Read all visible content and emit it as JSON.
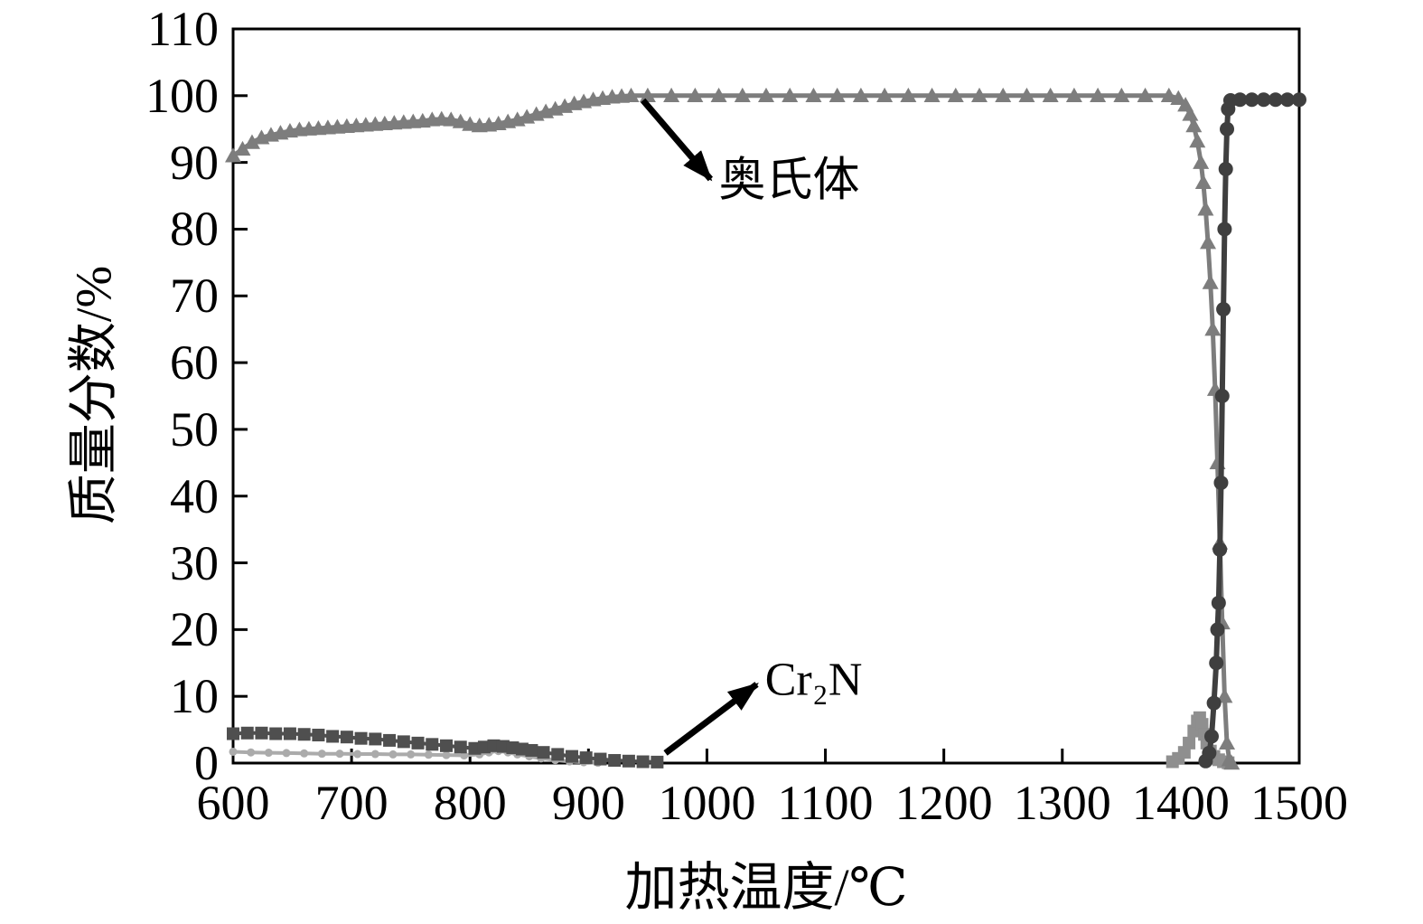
{
  "chart_data": {
    "type": "line",
    "title": "",
    "xlabel": "加热温度/℃",
    "ylabel": "质量分数/%",
    "xlim": [
      600,
      1500
    ],
    "ylim": [
      0,
      110
    ],
    "grid": false,
    "legend": "none",
    "x_ticks": [
      600,
      700,
      800,
      900,
      1000,
      1100,
      1200,
      1300,
      1400,
      1500
    ],
    "y_ticks": [
      0,
      10,
      20,
      30,
      40,
      50,
      60,
      70,
      80,
      90,
      100,
      110
    ],
    "annotations": [
      {
        "label": "奥氏体",
        "arrow": {
          "x1": 946,
          "y1": 99.3,
          "x2": 1003,
          "y2": 87.5
        },
        "text_at": {
          "x": 1010,
          "y": 88
        }
      },
      {
        "label": "Cr₂N",
        "arrow": {
          "x1": 965,
          "y1": 1.5,
          "x2": 1042,
          "y2": 11.8
        },
        "text_at": {
          "x": 1049,
          "y": 12.5
        }
      }
    ],
    "series": [
      {
        "name": "minor-phase",
        "label": "",
        "color": "#ababab",
        "marker": "dot",
        "marker_size": 4.5,
        "line_width": 4,
        "points": [
          [
            600,
            1.7
          ],
          [
            615,
            1.6
          ],
          [
            630,
            1.55
          ],
          [
            645,
            1.5
          ],
          [
            660,
            1.45
          ],
          [
            675,
            1.4
          ],
          [
            690,
            1.4
          ],
          [
            705,
            1.35
          ],
          [
            720,
            1.35
          ],
          [
            735,
            1.3
          ],
          [
            750,
            1.3
          ],
          [
            765,
            1.25
          ],
          [
            780,
            1.2
          ],
          [
            795,
            1.15
          ],
          [
            808,
            1.3
          ],
          [
            816,
            1.6
          ],
          [
            824,
            1.8
          ],
          [
            832,
            1.6
          ],
          [
            840,
            1.3
          ],
          [
            850,
            1.0
          ],
          [
            860,
            0.7
          ],
          [
            872,
            0.45
          ],
          [
            884,
            0.25
          ],
          [
            896,
            0.12
          ],
          [
            908,
            0.05
          ]
        ]
      },
      {
        "name": "cr2n",
        "label": "Cr₂N",
        "color": "#4f4f4f",
        "marker": "square",
        "marker_size": 7,
        "line_width": 4,
        "points": [
          [
            600,
            4.4
          ],
          [
            612,
            4.5
          ],
          [
            624,
            4.5
          ],
          [
            636,
            4.4
          ],
          [
            648,
            4.4
          ],
          [
            660,
            4.3
          ],
          [
            672,
            4.2
          ],
          [
            684,
            4.0
          ],
          [
            696,
            3.9
          ],
          [
            708,
            3.7
          ],
          [
            720,
            3.6
          ],
          [
            732,
            3.4
          ],
          [
            744,
            3.2
          ],
          [
            756,
            3.0
          ],
          [
            768,
            2.8
          ],
          [
            780,
            2.6
          ],
          [
            792,
            2.4
          ],
          [
            804,
            2.2
          ],
          [
            812,
            2.4
          ],
          [
            820,
            2.6
          ],
          [
            828,
            2.5
          ],
          [
            836,
            2.3
          ],
          [
            844,
            2.1
          ],
          [
            852,
            1.9
          ],
          [
            862,
            1.6
          ],
          [
            874,
            1.3
          ],
          [
            886,
            1.0
          ],
          [
            898,
            0.8
          ],
          [
            910,
            0.6
          ],
          [
            922,
            0.4
          ],
          [
            934,
            0.3
          ],
          [
            946,
            0.2
          ],
          [
            958,
            0.15
          ]
        ]
      },
      {
        "name": "high-temp-minor-phase",
        "label": "",
        "color": "#8f8f8f",
        "marker": "square",
        "marker_size": 7,
        "line_width": 3,
        "points": [
          [
            1393,
            0.2
          ],
          [
            1398,
            0.7
          ],
          [
            1403,
            1.6
          ],
          [
            1407,
            3.0
          ],
          [
            1411,
            4.8
          ],
          [
            1414,
            6.3
          ],
          [
            1416,
            6.8
          ],
          [
            1418,
            5.8
          ],
          [
            1420,
            4.3
          ],
          [
            1422,
            3.0
          ],
          [
            1425,
            1.8
          ],
          [
            1428,
            1.0
          ],
          [
            1432,
            0.5
          ],
          [
            1436,
            0.2
          ],
          [
            1440,
            0.05
          ]
        ]
      },
      {
        "name": "austenite",
        "label": "奥氏体",
        "color": "#7d7d7d",
        "marker": "triangle",
        "marker_size": 9,
        "line_width": 5,
        "points": [
          [
            600,
            91
          ],
          [
            608,
            92
          ],
          [
            616,
            93
          ],
          [
            624,
            93.7
          ],
          [
            632,
            94.1
          ],
          [
            640,
            94.4
          ],
          [
            648,
            94.7
          ],
          [
            656,
            94.9
          ],
          [
            664,
            95
          ],
          [
            672,
            95.1
          ],
          [
            680,
            95.2
          ],
          [
            688,
            95.3
          ],
          [
            696,
            95.4
          ],
          [
            704,
            95.5
          ],
          [
            712,
            95.6
          ],
          [
            720,
            95.7
          ],
          [
            728,
            95.8
          ],
          [
            736,
            95.9
          ],
          [
            744,
            96
          ],
          [
            752,
            96.1
          ],
          [
            760,
            96.2
          ],
          [
            768,
            96.4
          ],
          [
            776,
            96.5
          ],
          [
            784,
            96.4
          ],
          [
            792,
            96.1
          ],
          [
            800,
            95.7
          ],
          [
            808,
            95.5
          ],
          [
            816,
            95.6
          ],
          [
            824,
            95.8
          ],
          [
            832,
            96.1
          ],
          [
            840,
            96.4
          ],
          [
            848,
            96.8
          ],
          [
            856,
            97.2
          ],
          [
            864,
            97.6
          ],
          [
            872,
            98
          ],
          [
            880,
            98.4
          ],
          [
            888,
            98.8
          ],
          [
            896,
            99.1
          ],
          [
            904,
            99.4
          ],
          [
            912,
            99.6
          ],
          [
            920,
            99.8
          ],
          [
            928,
            99.9
          ],
          [
            936,
            100
          ],
          [
            950,
            100
          ],
          [
            970,
            100
          ],
          [
            990,
            100
          ],
          [
            1010,
            100
          ],
          [
            1030,
            100
          ],
          [
            1050,
            100
          ],
          [
            1070,
            100
          ],
          [
            1090,
            100
          ],
          [
            1110,
            100
          ],
          [
            1130,
            100
          ],
          [
            1150,
            100
          ],
          [
            1170,
            100
          ],
          [
            1190,
            100
          ],
          [
            1210,
            100
          ],
          [
            1230,
            100
          ],
          [
            1250,
            100
          ],
          [
            1270,
            100
          ],
          [
            1290,
            100
          ],
          [
            1310,
            100
          ],
          [
            1330,
            100
          ],
          [
            1350,
            100
          ],
          [
            1370,
            100
          ],
          [
            1390,
            100
          ],
          [
            1398,
            99.6
          ],
          [
            1404,
            98.6
          ],
          [
            1408,
            97.2
          ],
          [
            1411,
            95.5
          ],
          [
            1414,
            93.2
          ],
          [
            1417,
            90
          ],
          [
            1419,
            87
          ],
          [
            1421,
            83
          ],
          [
            1423,
            78
          ],
          [
            1425,
            72
          ],
          [
            1427,
            65
          ],
          [
            1429,
            56
          ],
          [
            1431,
            45
          ],
          [
            1433,
            33
          ],
          [
            1435,
            21
          ],
          [
            1437,
            10
          ],
          [
            1439,
            3
          ],
          [
            1441,
            0.5
          ],
          [
            1443,
            0
          ]
        ]
      },
      {
        "name": "liquid",
        "label": "",
        "color": "#3f3f3f",
        "marker": "circle",
        "marker_size": 8,
        "line_width": 6,
        "points": [
          [
            1421,
            0.3
          ],
          [
            1424,
            1.5
          ],
          [
            1426,
            4
          ],
          [
            1428,
            9
          ],
          [
            1430,
            15
          ],
          [
            1431,
            20
          ],
          [
            1432,
            24
          ],
          [
            1433,
            32
          ],
          [
            1434,
            42
          ],
          [
            1435,
            55
          ],
          [
            1436,
            68
          ],
          [
            1437,
            80
          ],
          [
            1438,
            89
          ],
          [
            1439,
            95
          ],
          [
            1440,
            98
          ],
          [
            1442,
            99.3
          ],
          [
            1450,
            99.4
          ],
          [
            1460,
            99.4
          ],
          [
            1470,
            99.4
          ],
          [
            1480,
            99.4
          ],
          [
            1490,
            99.4
          ],
          [
            1500,
            99.4
          ]
        ]
      }
    ]
  }
}
